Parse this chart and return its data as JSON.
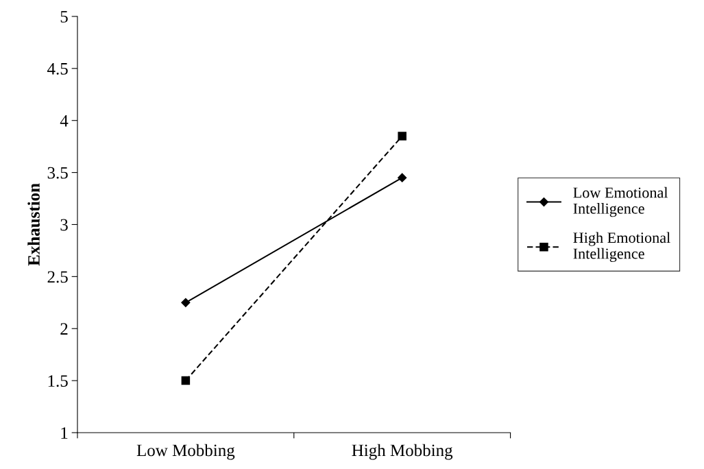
{
  "chart_data": {
    "type": "line",
    "ylabel": "Exhaustion",
    "categories": [
      "Low Mobbing",
      "High Mobbing"
    ],
    "series": [
      {
        "name": "Low Emotional\nIntelligence",
        "color": "#000000",
        "values": [
          2.25,
          3.45
        ],
        "marker": "diamond",
        "line_style": "solid"
      },
      {
        "name": "High Emotional\nIntelligence",
        "color": "#000000",
        "values": [
          1.5,
          3.85
        ],
        "marker": "square",
        "line_style": "dashed"
      }
    ],
    "ylim": [
      1,
      5
    ],
    "yticks": [
      1,
      1.5,
      2,
      2.5,
      3,
      3.5,
      4,
      4.5,
      5
    ],
    "grid": false,
    "legend": "right"
  }
}
